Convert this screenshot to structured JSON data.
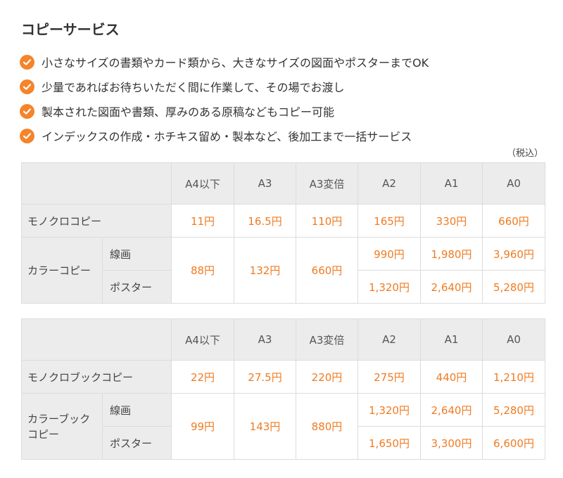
{
  "title": "コピーサービス",
  "features": [
    "小さなサイズの書類やカード類から、大きなサイズの図面やポスターまでOK",
    "少量であればお待ちいただく間に作業して、その場でお渡し",
    "製本された図面や書類、厚みのある原稿などもコピー可能",
    "インデックスの作成・ホチキス留め・製本など、後加工まで一括サービス"
  ],
  "tax_note": "（税込）",
  "colors": {
    "accent": "#f5842a",
    "price": "#f07b22",
    "header_bg": "#ececec"
  },
  "icons": {
    "feature_bullet": "check-circle-icon"
  },
  "table1": {
    "headers": [
      "A4以下",
      "A3",
      "A3変倍",
      "A2",
      "A1",
      "A0"
    ],
    "mono": {
      "label": "モノクロコピー",
      "prices": [
        "11円",
        "16.5円",
        "110円",
        "165円",
        "330円",
        "660円"
      ]
    },
    "color": {
      "label": "カラーコピー",
      "sub1": "線画",
      "sub2": "ポスター",
      "shared": [
        "88円",
        "132円",
        "660円"
      ],
      "line_prices": [
        "990円",
        "1,980円",
        "3,960円"
      ],
      "poster_prices": [
        "1,320円",
        "2,640円",
        "5,280円"
      ]
    }
  },
  "table2": {
    "headers": [
      "A4以下",
      "A3",
      "A3変倍",
      "A2",
      "A1",
      "A0"
    ],
    "mono": {
      "label": "モノクロブックコピー",
      "prices": [
        "22円",
        "27.5円",
        "220円",
        "275円",
        "440円",
        "1,210円"
      ]
    },
    "color": {
      "label_line1": "カラーブック",
      "label_line2": "コピー",
      "sub1": "線画",
      "sub2": "ポスター",
      "shared": [
        "99円",
        "143円",
        "880円"
      ],
      "line_prices": [
        "1,320円",
        "2,640円",
        "5,280円"
      ],
      "poster_prices": [
        "1,650円",
        "3,300円",
        "6,600円"
      ]
    }
  }
}
